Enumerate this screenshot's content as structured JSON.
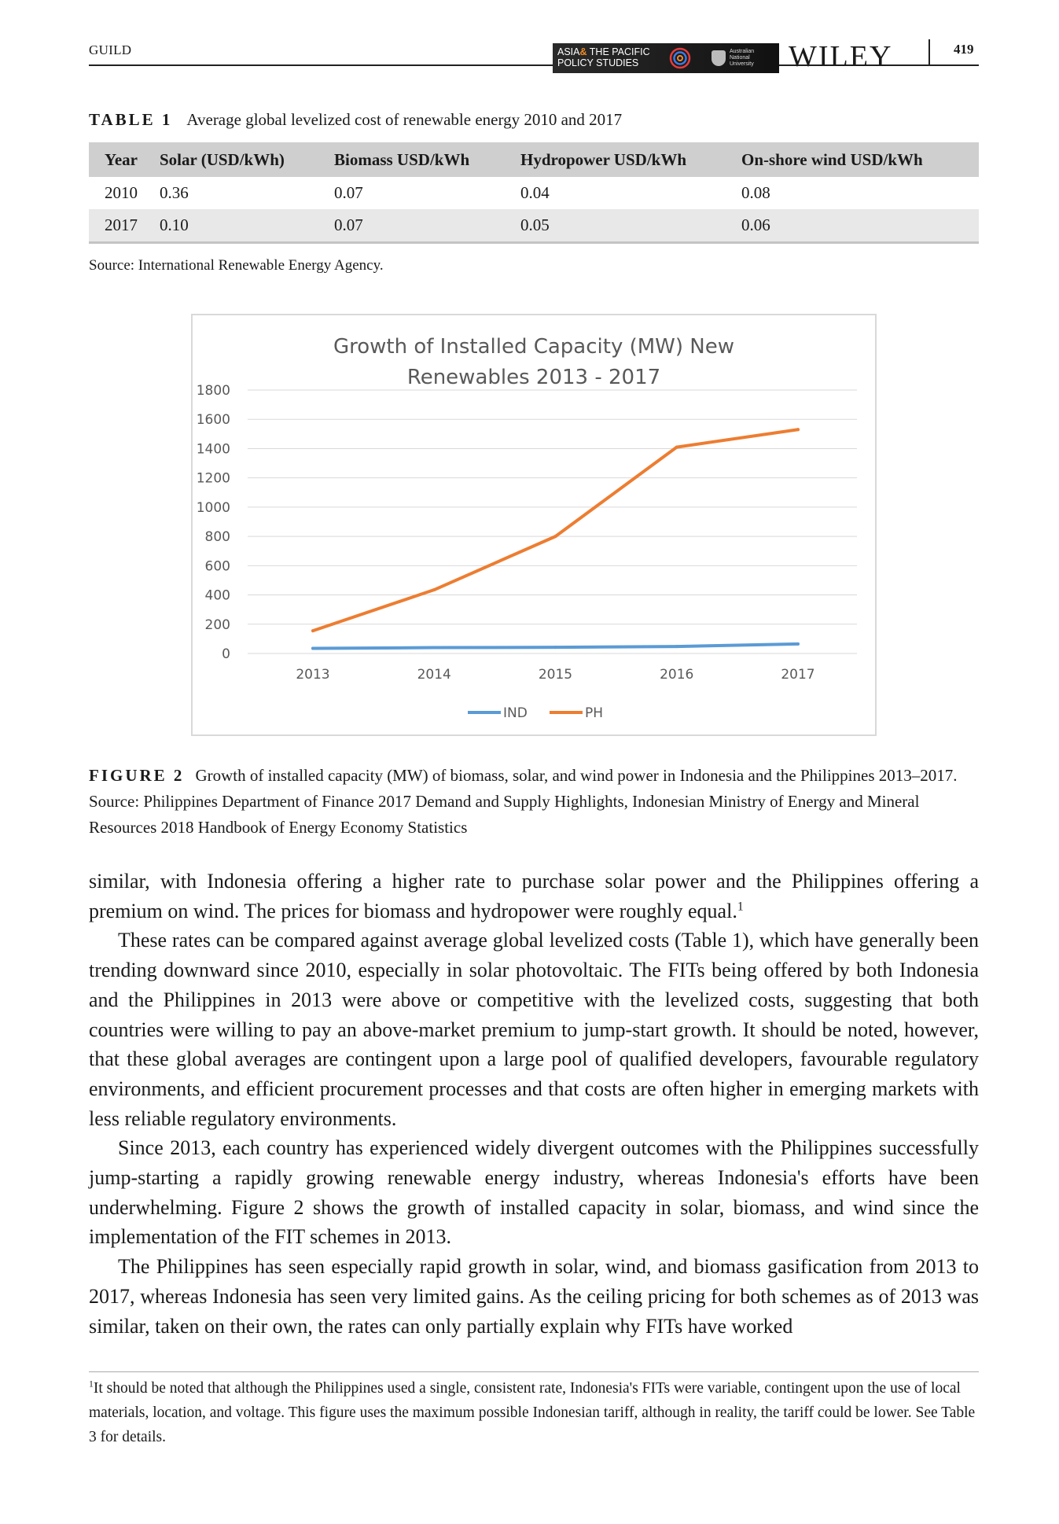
{
  "header": {
    "running_head": "GUILD",
    "banner_line1_a": "ASIA",
    "banner_amp": "&",
    "banner_line1_b": " THE PACIFIC",
    "banner_line2": "POLICY STUDIES",
    "university": [
      "Australian",
      "National",
      "University"
    ],
    "publisher": "WILEY",
    "page_number": "419"
  },
  "table": {
    "label": "TABLE 1",
    "title": "Average global levelized cost of renewable energy 2010 and 2017",
    "headers": [
      "Year",
      "Solar (USD/kWh)",
      "Biomass USD/kWh",
      "Hydropower USD/kWh",
      "On-shore wind USD/kWh"
    ],
    "rows": [
      [
        "2010",
        "0.36",
        "0.07",
        "0.04",
        "0.08"
      ],
      [
        "2017",
        "0.10",
        "0.07",
        "0.05",
        "0.06"
      ]
    ],
    "source": "Source: International Renewable Energy Agency."
  },
  "chart_data": {
    "type": "line",
    "title": "Growth of Installed Capacity (MW) New Renewables 2013 - 2017",
    "title_lines": [
      "Growth of Installed Capacity (MW) New",
      "Renewables 2013 - 2017"
    ],
    "categories": [
      "2013",
      "2014",
      "2015",
      "2016",
      "2017"
    ],
    "ylim": [
      0,
      1800
    ],
    "yticks": [
      "0",
      "200",
      "400",
      "600",
      "800",
      "1000",
      "1200",
      "1400",
      "1600",
      "1800"
    ],
    "grid": true,
    "legend_position": "bottom",
    "series": [
      {
        "name": "IND",
        "color": "#5b9bd5",
        "values": [
          35,
          40,
          42,
          48,
          65
        ]
      },
      {
        "name": "PH",
        "color": "#ed7d31",
        "values": [
          155,
          435,
          800,
          1410,
          1530
        ]
      }
    ]
  },
  "figure": {
    "label": "FIGURE 2",
    "caption": "Growth of installed capacity (MW) of biomass, solar, and wind power in Indonesia and the Philippines 2013–2017. Source: Philippines Department of Finance 2017 Demand and Supply Highlights, Indonesian Ministry of Energy and Mineral Resources 2018 Handbook of Energy Economy Statistics"
  },
  "body": {
    "p1": "similar, with Indonesia offering a higher rate to purchase solar power and the Philippines offering a premium on wind. The prices for biomass and hydropower were roughly equal.",
    "p1_note": "1",
    "p2": "These rates can be compared against average global levelized costs (Table 1), which have generally been trending downward since 2010, especially in solar photovoltaic. The FITs being offered by both Indonesia and the Philippines in 2013 were above or competitive with the levelized costs, suggesting that both countries were willing to pay an above-market premium to jump-start growth. It should be noted, however, that these global averages are contingent upon a large pool of qualified developers, favourable regulatory environments, and efficient procurement processes and that costs are often higher in emerging markets with less reliable regulatory environments.",
    "p3": "Since 2013, each country has experienced widely divergent outcomes with the Philippines successfully jump-starting a rapidly growing renewable energy industry, whereas Indonesia's efforts have been underwhelming. Figure 2 shows the growth of installed capacity in solar, biomass, and wind since the implementation of the FIT schemes in 2013.",
    "p4": "The Philippines has seen especially rapid growth in solar, wind, and biomass gasification from 2013 to 2017, whereas Indonesia has seen very limited gains. As the ceiling pricing for both schemes as of 2013 was similar, taken on their own, the rates can only partially explain why FITs have worked"
  },
  "footnote": {
    "mark": "1",
    "text": "It should be noted that although the Philippines used a single, consistent rate, Indonesia's FITs were variable, contingent upon the use of local materials, location, and voltage. This figure uses the maximum possible Indonesian tariff, although in reality, the tariff could be lower. See Table 3 for details."
  }
}
